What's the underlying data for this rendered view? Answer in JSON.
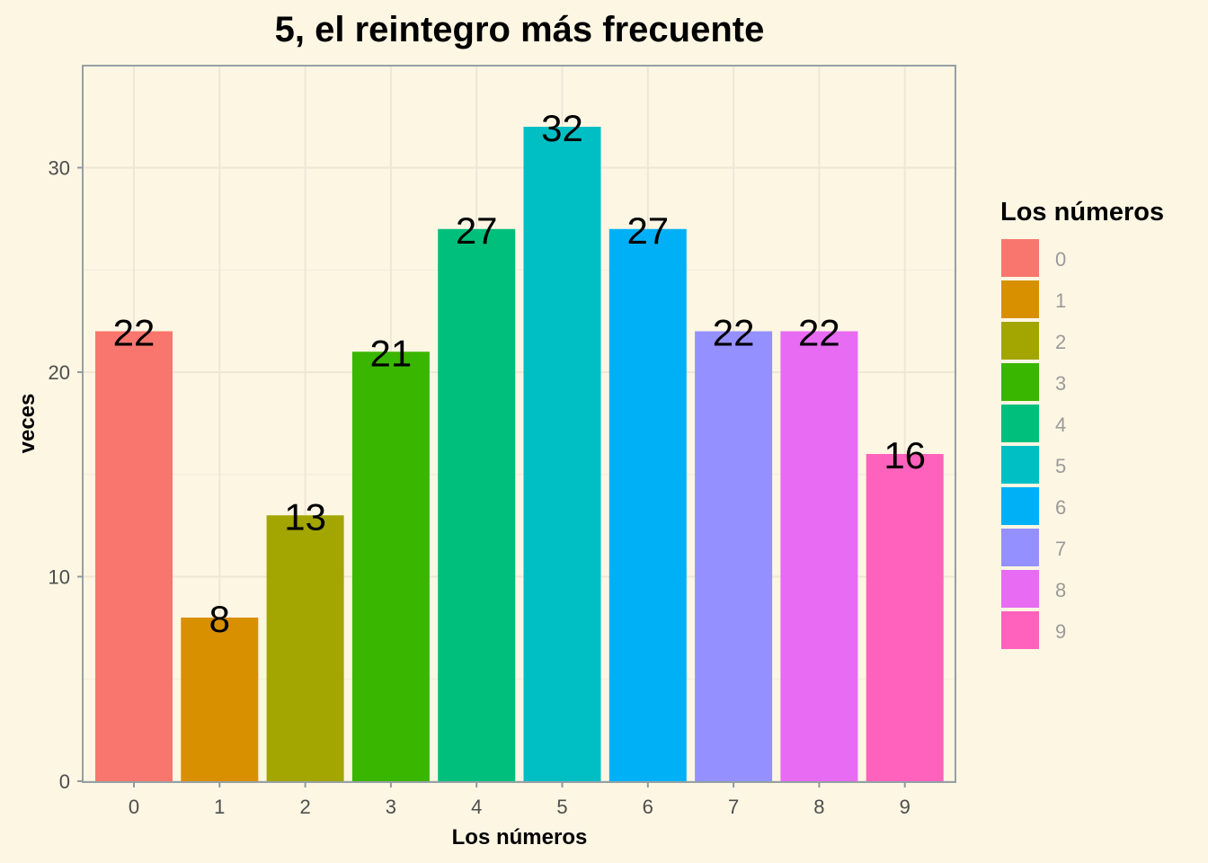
{
  "chart_data": {
    "type": "bar",
    "title": "5, el reintegro más frecuente",
    "xlabel": "Los números",
    "ylabel": "veces",
    "categories": [
      "0",
      "1",
      "2",
      "3",
      "4",
      "5",
      "6",
      "7",
      "8",
      "9"
    ],
    "values": [
      22,
      8,
      13,
      21,
      27,
      32,
      27,
      22,
      22,
      16
    ],
    "colors": [
      "#F8766D",
      "#D89000",
      "#A3A500",
      "#39B600",
      "#00BF7D",
      "#00BFC4",
      "#00B0F6",
      "#9590FF",
      "#E76BF3",
      "#FF62BC"
    ],
    "ylim": [
      0,
      35
    ],
    "yticks": [
      0,
      10,
      20,
      30
    ],
    "grid": true,
    "background": "#fdf6e3",
    "legend": {
      "title": "Los números",
      "position": "right",
      "labels": [
        "0",
        "1",
        "2",
        "3",
        "4",
        "5",
        "6",
        "7",
        "8",
        "9"
      ]
    }
  }
}
